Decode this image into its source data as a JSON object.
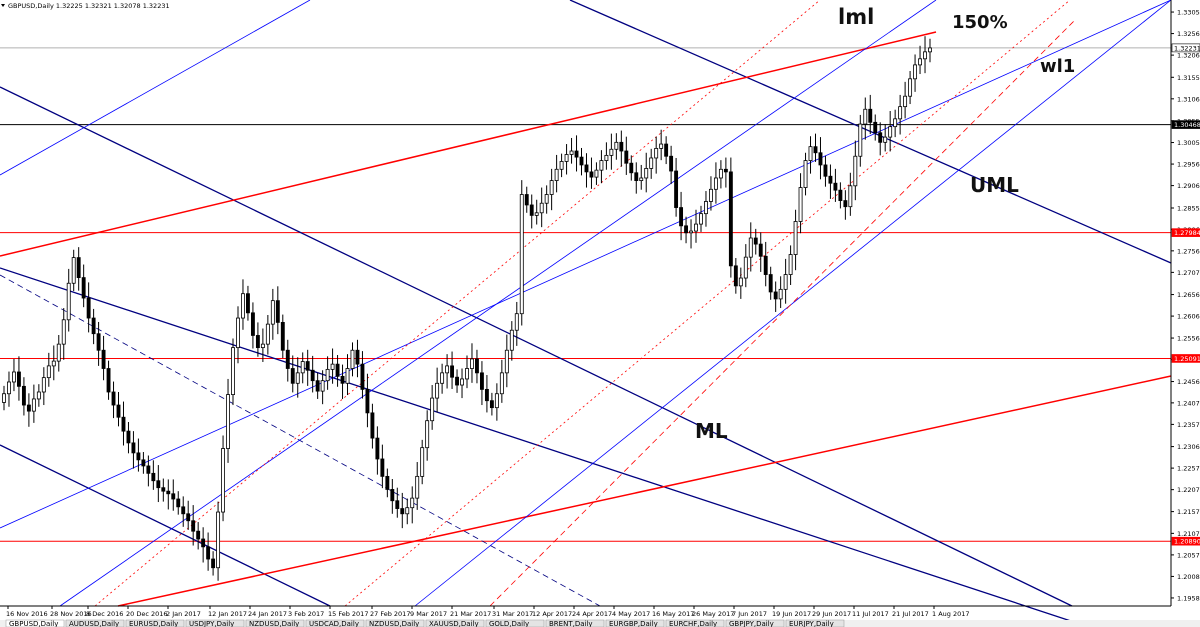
{
  "header": {
    "symbol_line": "GBPUSD,Daily  1.32225 1.32321 1.32078 1.32231"
  },
  "tabs": [
    "GBPUSD,Daily",
    "AUDUSD,Daily",
    "EURUSD,Daily",
    "USDJPY,Daily",
    "NZDUSD,Daily",
    "USDCAD,Daily",
    "NZDUSD,Daily",
    "XAUUSD,Daily",
    "GOLD,Daily",
    "BRENT,Daily",
    "EURGBP,Daily",
    "EURCHF,Daily",
    "GBPJPY,Daily",
    "EURJPY,Daily"
  ],
  "colors": {
    "bull": "#ffffff",
    "bear": "#000000",
    "red": "#ff0000",
    "navy": "#000080",
    "blue": "#0000ff",
    "grid": "#c8c8c8"
  },
  "chart_data": {
    "type": "candlestick",
    "title": "GBPUSD,Daily",
    "ylim": [
      1.194,
      1.3324
    ],
    "price_ticks": [
      "1.33055",
      "1.32560",
      "1.32065",
      "1.31555",
      "1.31060",
      "1.30555",
      "1.30055",
      "1.29560",
      "1.29065",
      "1.28550",
      "1.28060",
      "1.27565",
      "1.27070",
      "1.26560",
      "1.26065",
      "1.25560",
      "1.25065",
      "1.24560",
      "1.24070",
      "1.23575",
      "1.23065",
      "1.22570",
      "1.22075",
      "1.21570",
      "1.21070",
      "1.20575",
      "1.20080",
      "1.19585"
    ],
    "date_labels": [
      "16 Nov 2016",
      "28 Nov 2016",
      "8 Dec 2016",
      "20 Dec 2016",
      "2 Jan 2017",
      "12 Jan 2017",
      "24 Jan 2017",
      "3 Feb 2017",
      "15 Feb 2017",
      "27 Feb 2017",
      "9 Mar 2017",
      "21 Mar 2017",
      "31 Mar 2017",
      "12 Apr 2017",
      "24 Apr 2017",
      "4 May 2017",
      "16 May 2017",
      "26 May 2017",
      "7 Jun 2017",
      "19 Jun 2017",
      "29 Jun 2017",
      "11 Jul 2017",
      "21 Jul 2017",
      "1 Aug 2017"
    ],
    "price_markers": [
      {
        "label": "1.32231",
        "value": 1.32231,
        "color": "#000000"
      },
      {
        "label": "1.30468",
        "value": 1.30468,
        "color": "#000000"
      },
      {
        "label": "1.27984",
        "value": 1.27984,
        "color": "#ff0000"
      },
      {
        "label": "1.25091",
        "value": 1.25091,
        "color": "#ff0000"
      },
      {
        "label": "1.20890",
        "value": 1.2089,
        "color": "#ff0000"
      }
    ],
    "annotations": [
      "lml",
      "150%",
      "wl1",
      "UML",
      "ML"
    ],
    "closes": [
      1.2428,
      1.2455,
      1.2478,
      1.2445,
      1.2402,
      1.2388,
      1.2416,
      1.2432,
      1.2465,
      1.2492,
      1.2503,
      1.2542,
      1.2598,
      1.2682,
      1.2741,
      1.2695,
      1.2648,
      1.2602,
      1.2566,
      1.2528,
      1.2486,
      1.2432,
      1.2402,
      1.2374,
      1.2342,
      1.2315,
      1.2292,
      1.2276,
      1.2262,
      1.2245,
      1.2228,
      1.2212,
      1.2204,
      1.2198,
      1.2186,
      1.2168,
      1.2152,
      1.2136,
      1.2112,
      1.2094,
      1.2076,
      1.2048,
      1.2028,
      1.2156,
      1.2302,
      1.2426,
      1.2534,
      1.2602,
      1.2658,
      1.2614,
      1.2562,
      1.2534,
      1.2542,
      1.2588,
      1.2642,
      1.2592,
      1.2528,
      1.2486,
      1.2452,
      1.2476,
      1.2502,
      1.2482,
      1.2458,
      1.2434,
      1.2458,
      1.2484,
      1.2496,
      1.2468,
      1.2452,
      1.2486,
      1.2528,
      1.2496,
      1.2438,
      1.2384,
      1.2326,
      1.2278,
      1.2238,
      1.2208,
      1.2182,
      1.2164,
      1.2152,
      1.2166,
      1.2188,
      1.2238,
      1.2304,
      1.2366,
      1.2418,
      1.2452,
      1.2476,
      1.2492,
      1.2466,
      1.2448,
      1.2462,
      1.2486,
      1.2508,
      1.2476,
      1.2438,
      1.2412,
      1.2396,
      1.2428,
      1.2476,
      1.2528,
      1.2574,
      1.2612,
      1.2886,
      1.2862,
      1.2838,
      1.2844,
      1.2866,
      1.2886,
      1.2918,
      1.2944,
      1.2962,
      1.2978,
      1.2986,
      1.2972,
      1.2954,
      1.2938,
      1.2926,
      1.2942,
      1.2964,
      1.2976,
      1.299,
      1.3006,
      1.2986,
      1.2958,
      1.2936,
      1.2918,
      1.2924,
      1.2946,
      1.297,
      1.2992,
      1.3002,
      1.2974,
      1.294,
      1.2856,
      1.2814,
      1.2798,
      1.2802,
      1.2818,
      1.2842,
      1.287,
      1.2898,
      1.2924,
      1.2944,
      1.2938,
      1.2722,
      1.2676,
      1.2694,
      1.2742,
      1.2786,
      1.2772,
      1.2744,
      1.2702,
      1.2662,
      1.2646,
      1.2668,
      1.2702,
      1.2748,
      1.2824,
      1.2902,
      1.2964,
      1.2996,
      1.2982,
      1.2954,
      1.2928,
      1.2912,
      1.2896,
      1.2872,
      1.2858,
      1.2906,
      1.2974,
      1.3048,
      1.3082,
      1.3052,
      1.3028,
      1.3006,
      1.3018,
      1.3042,
      1.306,
      1.3088,
      1.3112,
      1.3152,
      1.3184,
      1.3198,
      1.3214,
      1.3223
    ]
  }
}
